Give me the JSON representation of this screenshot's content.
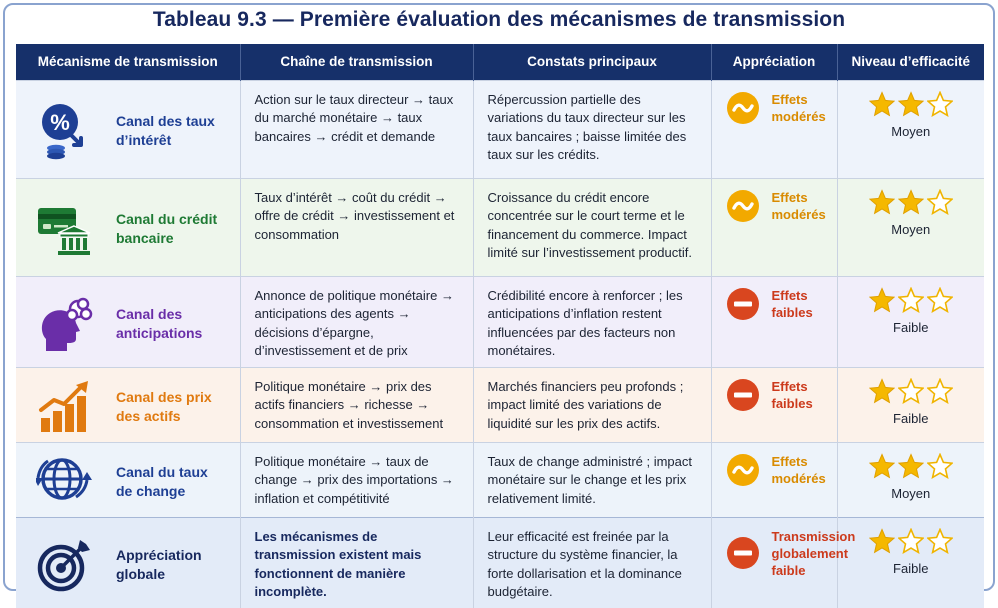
{
  "title": "Tableau 9.3 — Première évaluation des mécanismes de transmission",
  "headers": [
    "Mécanisme de transmission",
    "Chaîne de transmission",
    "Constats principaux",
    "Appréciation",
    "Niveau d’efficacité"
  ],
  "rows": [
    {
      "mechanism": "Canal des taux d’intérêt",
      "icon": "percent-coins-icon",
      "color": "#1e3f94",
      "chain": "Action sur le taux directeur → taux du marché monétaire → taux bancaires → crédit et demande",
      "findings": "Répercussion partielle des variations du taux directeur sur les taux bancaires ; baisse limitée des taux sur les crédits.",
      "appreciation": "Effets modérés",
      "appreciation_type": "moderate",
      "stars": 2,
      "level": "Moyen"
    },
    {
      "mechanism": "Canal du crédit bancaire",
      "icon": "card-bank-icon",
      "color": "#1e7a34",
      "chain": "Taux d’intérêt → coût du crédit → offre de crédit → investissement et consommation",
      "findings": "Croissance du crédit encore concentrée sur le court terme et le financement du commerce. Impact limité sur l’investissement productif.",
      "appreciation": "Effets modérés",
      "appreciation_type": "moderate",
      "stars": 2,
      "level": "Moyen"
    },
    {
      "mechanism": "Canal des anticipations",
      "icon": "head-thought-icon",
      "color": "#6a2ea8",
      "chain": "Annonce de politique monétaire → anticipations des agents → décisions d’épargne, d’investissement et de prix",
      "findings": "Crédibilité encore à renforcer ; les anticipations d’inflation restent influencées par des facteurs non monétaires.",
      "appreciation": "Effets faibles",
      "appreciation_type": "weak",
      "stars": 1,
      "level": "Faible"
    },
    {
      "mechanism": "Canal des prix des actifs",
      "icon": "bar-chart-up-icon",
      "color": "#e07a10",
      "chain": "Politique monétaire → prix des actifs financiers → richesse → consommation et investissement",
      "findings": "Marchés financiers peu profonds ; impact limité des variations de liquidité sur les prix des actifs.",
      "appreciation": "Effets faibles",
      "appreciation_type": "weak",
      "stars": 1,
      "level": "Faible"
    },
    {
      "mechanism": "Canal du taux de change",
      "icon": "globe-icon",
      "color": "#1e3f94",
      "chain": "Politique monétaire → taux de change → prix des importations → inflation et compétitivité",
      "findings": "Taux de change administré ; impact monétaire sur le change et les prix relativement limité.",
      "appreciation": "Effets modérés",
      "appreciation_type": "moderate",
      "stars": 2,
      "level": "Moyen"
    },
    {
      "mechanism": "Appréciation globale",
      "icon": "target-icon",
      "color": "#17285e",
      "chain": "Les mécanismes de transmission existent mais fonctionnent de manière incomplète.",
      "chain_bold": true,
      "findings": "Leur efficacité est freinée par la structure du système financier, la forte dollarisation et la dominance budgétaire.",
      "appreciation": "Transmission globalement faible",
      "appreciation_type": "weak",
      "stars": 1,
      "level": "Faible"
    }
  ],
  "colors": {
    "header_bg": "#16306a",
    "moderate": "#f2a900",
    "weak": "#d9461f",
    "star_filled": "#f5b800"
  }
}
